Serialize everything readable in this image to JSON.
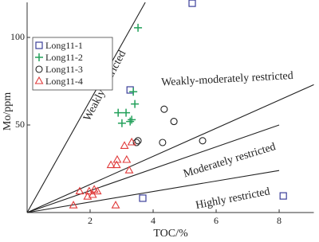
{
  "chart_data": {
    "type": "scatter",
    "x_label": "TOC/%",
    "y_label": "Mo/ppm",
    "xlim": [
      0,
      9.1
    ],
    "ylim": [
      0,
      120
    ],
    "xticks": [
      2,
      4,
      6,
      8
    ],
    "yticks": [
      50,
      100
    ],
    "legend": "upper-left",
    "boundaries": [
      {
        "label": "Weakly restricted",
        "x": [
          0,
          3.75
        ],
        "y": [
          0,
          120
        ]
      },
      {
        "label": "Weakly-moderately restricted",
        "x": [
          0,
          9.1
        ],
        "y": [
          0,
          73
        ]
      },
      {
        "label": "Moderately restricted",
        "x": [
          0,
          8
        ],
        "y": [
          0,
          50
        ]
      },
      {
        "label": "Highly restricted",
        "x": [
          0,
          8
        ],
        "y": [
          0,
          24
        ]
      }
    ],
    "series": [
      {
        "name": "Long11-1",
        "color": "#3b3f9a",
        "marker": "square",
        "x": [
          5.24,
          3.27,
          3.67,
          8.13
        ],
        "values": [
          119.5,
          70,
          8.2,
          9.5
        ]
      },
      {
        "name": "Long11-2",
        "color": "#22a05a",
        "marker": "plus",
        "x": [
          3.52,
          3.37,
          3.42,
          2.89,
          3.14,
          3.32,
          3.01,
          3.27
        ],
        "values": [
          105.5,
          69,
          62,
          57,
          57,
          53,
          51,
          52
        ]
      },
      {
        "name": "Long11-3",
        "color": "#222222",
        "marker": "circle",
        "x": [
          4.35,
          4.66,
          3.52,
          3.47,
          4.3,
          5.57
        ],
        "values": [
          59,
          52,
          41,
          40,
          40,
          41
        ]
      },
      {
        "name": "Long11-4",
        "color": "#e03a3a",
        "marker": "triangle",
        "x": [
          3.32,
          3.09,
          2.86,
          2.66,
          2.84,
          3.16,
          3.24,
          1.67,
          1.97,
          2.13,
          2.23,
          2.08,
          1.92,
          1.47,
          2.81
        ],
        "values": [
          40,
          38,
          30,
          27,
          27,
          30,
          24,
          12,
          12,
          13,
          12,
          10,
          9,
          4,
          4
        ]
      }
    ]
  }
}
